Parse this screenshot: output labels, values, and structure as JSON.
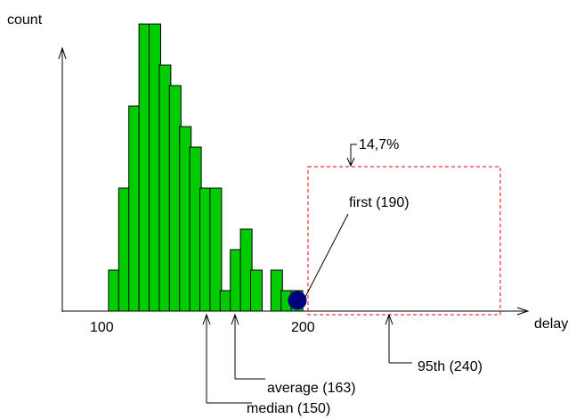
{
  "chart_data": {
    "type": "bar",
    "ylabel": "count",
    "xlabel": "delay",
    "x_ticks": [
      {
        "value": 100,
        "label": "100"
      },
      {
        "value": 200,
        "label": "200"
      }
    ],
    "bin_width": 5,
    "bars": [
      {
        "x": 105,
        "count": 1
      },
      {
        "x": 110,
        "count": 3
      },
      {
        "x": 115,
        "count": 5
      },
      {
        "x": 120,
        "count": 7
      },
      {
        "x": 125,
        "count": 7
      },
      {
        "x": 130,
        "count": 6
      },
      {
        "x": 135,
        "count": 5.5
      },
      {
        "x": 140,
        "count": 4.5
      },
      {
        "x": 145,
        "count": 4
      },
      {
        "x": 150,
        "count": 3
      },
      {
        "x": 155,
        "count": 3
      },
      {
        "x": 160,
        "count": 0.5
      },
      {
        "x": 165,
        "count": 1.5
      },
      {
        "x": 170,
        "count": 2
      },
      {
        "x": 175,
        "count": 1
      },
      {
        "x": 185,
        "count": 1
      },
      {
        "x": 190,
        "count": 0.5
      },
      {
        "x": 195,
        "count": 0.5
      }
    ],
    "bar_color": "#00cc00",
    "marker": {
      "label": "first (190)",
      "x": 190,
      "color": "#00007f"
    },
    "annotations": [
      {
        "label": "median (150)",
        "x": 150
      },
      {
        "label": "average (163)",
        "x": 163
      },
      {
        "label": "95th (240)",
        "x": 240
      }
    ],
    "tail_region": {
      "label": "14,7%",
      "color": "#ff0000"
    }
  }
}
